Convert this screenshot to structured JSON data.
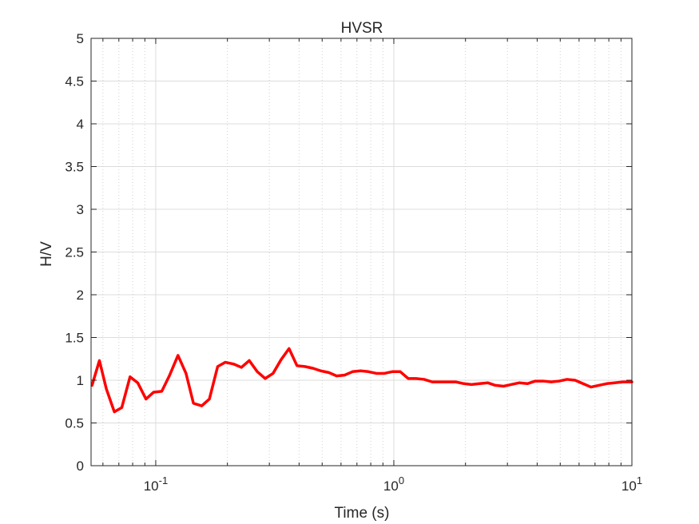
{
  "chart_data": {
    "type": "line",
    "title": "HVSR",
    "xlabel": "Time (s)",
    "ylabel": "H/V",
    "x_scale": "log",
    "xlim": [
      0.0535,
      10
    ],
    "ylim": [
      0,
      5
    ],
    "grid": true,
    "minor_grid_x": true,
    "x_ticks": [
      {
        "value": 0.1,
        "base": "10",
        "exp": "-1"
      },
      {
        "value": 1,
        "base": "10",
        "exp": "0"
      },
      {
        "value": 10,
        "base": "10",
        "exp": "1"
      }
    ],
    "y_ticks": [
      "0",
      "0.5",
      "1",
      "1.5",
      "2",
      "2.5",
      "3",
      "3.5",
      "4",
      "4.5",
      "5"
    ],
    "series": [
      {
        "color": "#ff0000",
        "x": [
          0.054,
          0.058,
          0.062,
          0.067,
          0.072,
          0.078,
          0.084,
          0.091,
          0.098,
          0.106,
          0.114,
          0.124,
          0.134,
          0.144,
          0.156,
          0.168,
          0.182,
          0.196,
          0.212,
          0.229,
          0.247,
          0.267,
          0.288,
          0.311,
          0.336,
          0.363,
          0.392,
          0.423,
          0.457,
          0.493,
          0.533,
          0.575,
          0.621,
          0.671,
          0.725,
          0.782,
          0.845,
          0.912,
          0.985,
          1.064,
          1.149,
          1.24,
          1.34,
          1.45,
          1.56,
          1.69,
          1.82,
          1.97,
          2.12,
          2.29,
          2.48,
          2.67,
          2.89,
          3.12,
          3.37,
          3.64,
          3.93,
          4.24,
          4.58,
          4.95,
          5.34,
          5.77,
          6.23,
          6.73,
          7.26,
          7.84,
          8.47,
          9.15,
          10.0
        ],
        "y": [
          0.94,
          1.23,
          0.9,
          0.63,
          0.68,
          1.04,
          0.97,
          0.78,
          0.86,
          0.87,
          1.05,
          1.29,
          1.08,
          0.73,
          0.7,
          0.78,
          1.16,
          1.21,
          1.19,
          1.15,
          1.23,
          1.1,
          1.02,
          1.08,
          1.24,
          1.37,
          1.17,
          1.16,
          1.14,
          1.11,
          1.09,
          1.05,
          1.06,
          1.1,
          1.11,
          1.1,
          1.08,
          1.08,
          1.1,
          1.1,
          1.02,
          1.02,
          1.01,
          0.98,
          0.98,
          0.98,
          0.98,
          0.96,
          0.95,
          0.96,
          0.97,
          0.94,
          0.93,
          0.95,
          0.97,
          0.96,
          0.99,
          0.99,
          0.98,
          0.99,
          1.01,
          1.0,
          0.96,
          0.92,
          0.94,
          0.96,
          0.97,
          0.98,
          0.98
        ]
      }
    ]
  }
}
